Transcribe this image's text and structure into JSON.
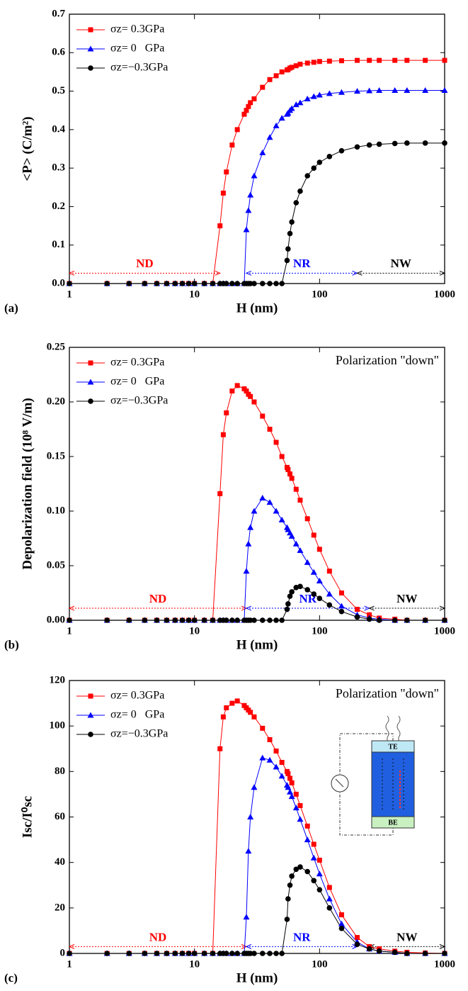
{
  "chart_data": [
    {
      "type": "line",
      "panel": "(a)",
      "xlabel": "H (nm)",
      "ylabel": "<P> (C/m²)",
      "xscale": "log",
      "xlim": [
        1,
        1000
      ],
      "xticks": [
        1,
        10,
        100,
        1000
      ],
      "ylim": [
        0,
        0.7
      ],
      "yticks": [
        {
          "value": 0,
          "label": "0.0"
        },
        0.1,
        0.2,
        0.3,
        0.4,
        0.5,
        0.6,
        0.7
      ],
      "legend": "upper left",
      "x": [
        1,
        2,
        3,
        4,
        5,
        6,
        7,
        8,
        9,
        10,
        12,
        14,
        16,
        17,
        18,
        20,
        22,
        25,
        26,
        27,
        28,
        30,
        35,
        40,
        45,
        50,
        55,
        56,
        58,
        60,
        65,
        70,
        80,
        90,
        100,
        120,
        150,
        200,
        250,
        300,
        400,
        500,
        700,
        1000
      ],
      "series": [
        {
          "name": "σz= 0.3GPa",
          "color": "#ff0000",
          "marker": "square",
          "values": [
            0,
            0,
            0,
            0,
            0,
            0,
            0,
            0,
            0,
            0,
            0,
            0,
            0.15,
            0.235,
            0.29,
            0.36,
            0.4,
            0.44,
            0.45,
            0.46,
            0.47,
            0.48,
            0.51,
            0.53,
            0.54,
            0.55,
            0.555,
            0.556,
            0.56,
            0.562,
            0.566,
            0.57,
            0.573,
            0.575,
            0.577,
            0.578,
            0.579,
            0.58,
            0.58,
            0.58,
            0.58,
            0.58,
            0.58,
            0.58
          ]
        },
        {
          "name": "σz= 0   GPa",
          "color": "#0000ff",
          "marker": "triangle",
          "values": [
            0,
            0,
            0,
            0,
            0,
            0,
            0,
            0,
            0,
            0,
            0,
            0,
            0,
            0,
            0,
            0,
            0,
            0,
            0.14,
            0.19,
            0.23,
            0.28,
            0.34,
            0.38,
            0.41,
            0.43,
            0.44,
            0.443,
            0.45,
            0.455,
            0.465,
            0.47,
            0.48,
            0.486,
            0.49,
            0.494,
            0.497,
            0.5,
            0.501,
            0.502,
            0.502,
            0.502,
            0.502,
            0.502
          ]
        },
        {
          "name": "σz=−0.3GPa",
          "color": "#000000",
          "marker": "circle",
          "values": [
            0,
            0,
            0,
            0,
            0,
            0,
            0,
            0,
            0,
            0,
            0,
            0,
            0,
            0,
            0,
            0,
            0,
            0,
            0,
            0,
            0,
            0,
            0,
            0,
            0,
            0,
            0.06,
            0.09,
            0.13,
            0.16,
            0.21,
            0.24,
            0.28,
            0.3,
            0.315,
            0.33,
            0.345,
            0.355,
            0.36,
            0.362,
            0.364,
            0.365,
            0.365,
            0.365
          ]
        }
      ],
      "regions": [
        {
          "label": "ND",
          "from": 1,
          "to": 16,
          "y": 0.027,
          "color": "#ff0000"
        },
        {
          "label": "NR",
          "from": 26,
          "to": 200,
          "y": 0.027,
          "color": "#0000ff"
        },
        {
          "label": "NW",
          "from": 200,
          "to": 1000,
          "y": 0.027,
          "color": "#000000"
        }
      ]
    },
    {
      "type": "line",
      "panel": "(b)",
      "xlabel": "H (nm)",
      "ylabel": "Depolarization field (10⁸ V/m)",
      "xscale": "log",
      "annotation": "Polarization \"down\"",
      "xlim": [
        1,
        1000
      ],
      "xticks": [
        1,
        10,
        100,
        1000
      ],
      "ylim": [
        0,
        0.25
      ],
      "yticks": [
        {
          "value": 0,
          "label": "0.00"
        },
        0.05,
        {
          "value": 0.1,
          "label": "0.10"
        },
        0.15,
        {
          "value": 0.2,
          "label": "0.20"
        },
        0.25
      ],
      "legend": "upper left",
      "x": [
        1,
        2,
        3,
        4,
        5,
        6,
        7,
        8,
        9,
        10,
        12,
        14,
        16,
        17,
        18,
        20,
        22,
        25,
        26,
        27,
        28,
        30,
        35,
        40,
        45,
        50,
        55,
        56,
        58,
        60,
        65,
        70,
        80,
        90,
        100,
        120,
        150,
        200,
        250,
        300,
        400,
        500,
        700,
        1000
      ],
      "series": [
        {
          "name": "σz= 0.3GPa",
          "color": "#ff0000",
          "marker": "square",
          "values": [
            0,
            0,
            0,
            0,
            0,
            0,
            0,
            0,
            0,
            0,
            0,
            0,
            0.116,
            0.17,
            0.19,
            0.21,
            0.215,
            0.212,
            0.21,
            0.207,
            0.205,
            0.2,
            0.187,
            0.175,
            0.163,
            0.15,
            0.14,
            0.138,
            0.134,
            0.13,
            0.12,
            0.11,
            0.093,
            0.078,
            0.065,
            0.045,
            0.025,
            0.01,
            0.005,
            0.002,
            0.001,
            0,
            0,
            0
          ]
        },
        {
          "name": "σz= 0   GPa",
          "color": "#0000ff",
          "marker": "triangle",
          "values": [
            0,
            0,
            0,
            0,
            0,
            0,
            0,
            0,
            0,
            0,
            0,
            0,
            0,
            0,
            0,
            0,
            0,
            0,
            0.045,
            0.07,
            0.085,
            0.1,
            0.112,
            0.108,
            0.1,
            0.092,
            0.085,
            0.083,
            0.08,
            0.077,
            0.07,
            0.064,
            0.053,
            0.044,
            0.036,
            0.024,
            0.013,
            0.005,
            0.002,
            0.001,
            0,
            0,
            0,
            0
          ]
        },
        {
          "name": "σz=−0.3GPa",
          "color": "#000000",
          "marker": "circle",
          "values": [
            0,
            0,
            0,
            0,
            0,
            0,
            0,
            0,
            0,
            0,
            0,
            0,
            0,
            0,
            0,
            0,
            0,
            0,
            0,
            0,
            0,
            0,
            0,
            0,
            0,
            0,
            0.01,
            0.015,
            0.022,
            0.026,
            0.03,
            0.031,
            0.028,
            0.024,
            0.02,
            0.014,
            0.008,
            0.003,
            0.001,
            0,
            0,
            0,
            0,
            0
          ]
        }
      ],
      "regions": [
        {
          "label": "ND",
          "from": 1,
          "to": 26,
          "y": 0.011,
          "color": "#ff0000"
        },
        {
          "label": "NR",
          "from": 26,
          "to": 250,
          "y": 0.011,
          "color": "#0000ff"
        },
        {
          "label": "NW",
          "from": 250,
          "to": 1000,
          "y": 0.011,
          "color": "#000000"
        }
      ]
    },
    {
      "type": "line",
      "panel": "(c)",
      "xlabel": "H (nm)",
      "ylabel": "Isc/I⁰sc",
      "xscale": "log",
      "annotation": "Polarization \"down\"",
      "inset": {
        "top": "TE",
        "bottom": "BE"
      },
      "xlim": [
        1,
        1000
      ],
      "xticks": [
        1,
        10,
        100,
        1000
      ],
      "ylim": [
        0,
        120
      ],
      "yticks": [
        0,
        20,
        40,
        60,
        80,
        100,
        120
      ],
      "legend": "upper left",
      "x": [
        1,
        2,
        3,
        4,
        5,
        6,
        7,
        8,
        9,
        10,
        12,
        14,
        16,
        17,
        18,
        20,
        22,
        25,
        26,
        27,
        28,
        30,
        35,
        40,
        45,
        50,
        55,
        56,
        58,
        60,
        65,
        70,
        80,
        90,
        100,
        120,
        150,
        200,
        250,
        300,
        400,
        500,
        700,
        1000
      ],
      "series": [
        {
          "name": "σz= 0.3GPa",
          "color": "#ff0000",
          "marker": "square",
          "values": [
            0,
            0,
            0,
            0,
            0,
            0,
            0,
            0,
            0,
            0,
            0,
            0,
            90,
            104,
            108,
            110,
            111,
            109,
            108,
            107,
            106,
            104,
            99,
            94,
            89,
            84,
            80,
            79,
            77,
            75,
            70,
            65,
            56,
            48,
            41,
            29,
            17,
            7,
            3,
            2,
            1,
            0.5,
            0.2,
            0
          ]
        },
        {
          "name": "σz= 0   GPa",
          "color": "#0000ff",
          "marker": "triangle",
          "values": [
            0,
            0,
            0,
            0,
            0,
            0,
            0,
            0,
            0,
            0,
            0,
            0,
            0,
            0,
            0,
            0,
            0,
            0,
            16,
            45,
            60,
            73,
            86,
            85,
            82,
            78,
            74,
            73,
            71,
            69,
            64,
            59,
            50,
            42,
            35,
            24,
            13,
            5,
            2,
            1,
            0.5,
            0,
            0,
            0
          ]
        },
        {
          "name": "σz=−0.3GPa",
          "color": "#000000",
          "marker": "circle",
          "values": [
            0,
            0,
            0,
            0,
            0,
            0,
            0,
            0,
            0,
            0,
            0,
            0,
            0,
            0,
            0,
            0,
            0,
            0,
            0,
            0,
            0,
            0,
            0,
            0,
            0,
            0,
            15,
            24,
            30,
            34,
            37,
            38,
            36,
            32,
            28,
            20,
            11,
            4,
            2,
            1,
            0.5,
            0,
            0,
            0
          ]
        }
      ],
      "regions": [
        {
          "label": "ND",
          "from": 1,
          "to": 26,
          "y": 3,
          "color": "#ff0000"
        },
        {
          "label": "NR",
          "from": 26,
          "to": 200,
          "y": 3,
          "color": "#0000ff"
        },
        {
          "label": "NW",
          "from": 250,
          "to": 1000,
          "y": 3,
          "color": "#000000"
        }
      ]
    }
  ]
}
